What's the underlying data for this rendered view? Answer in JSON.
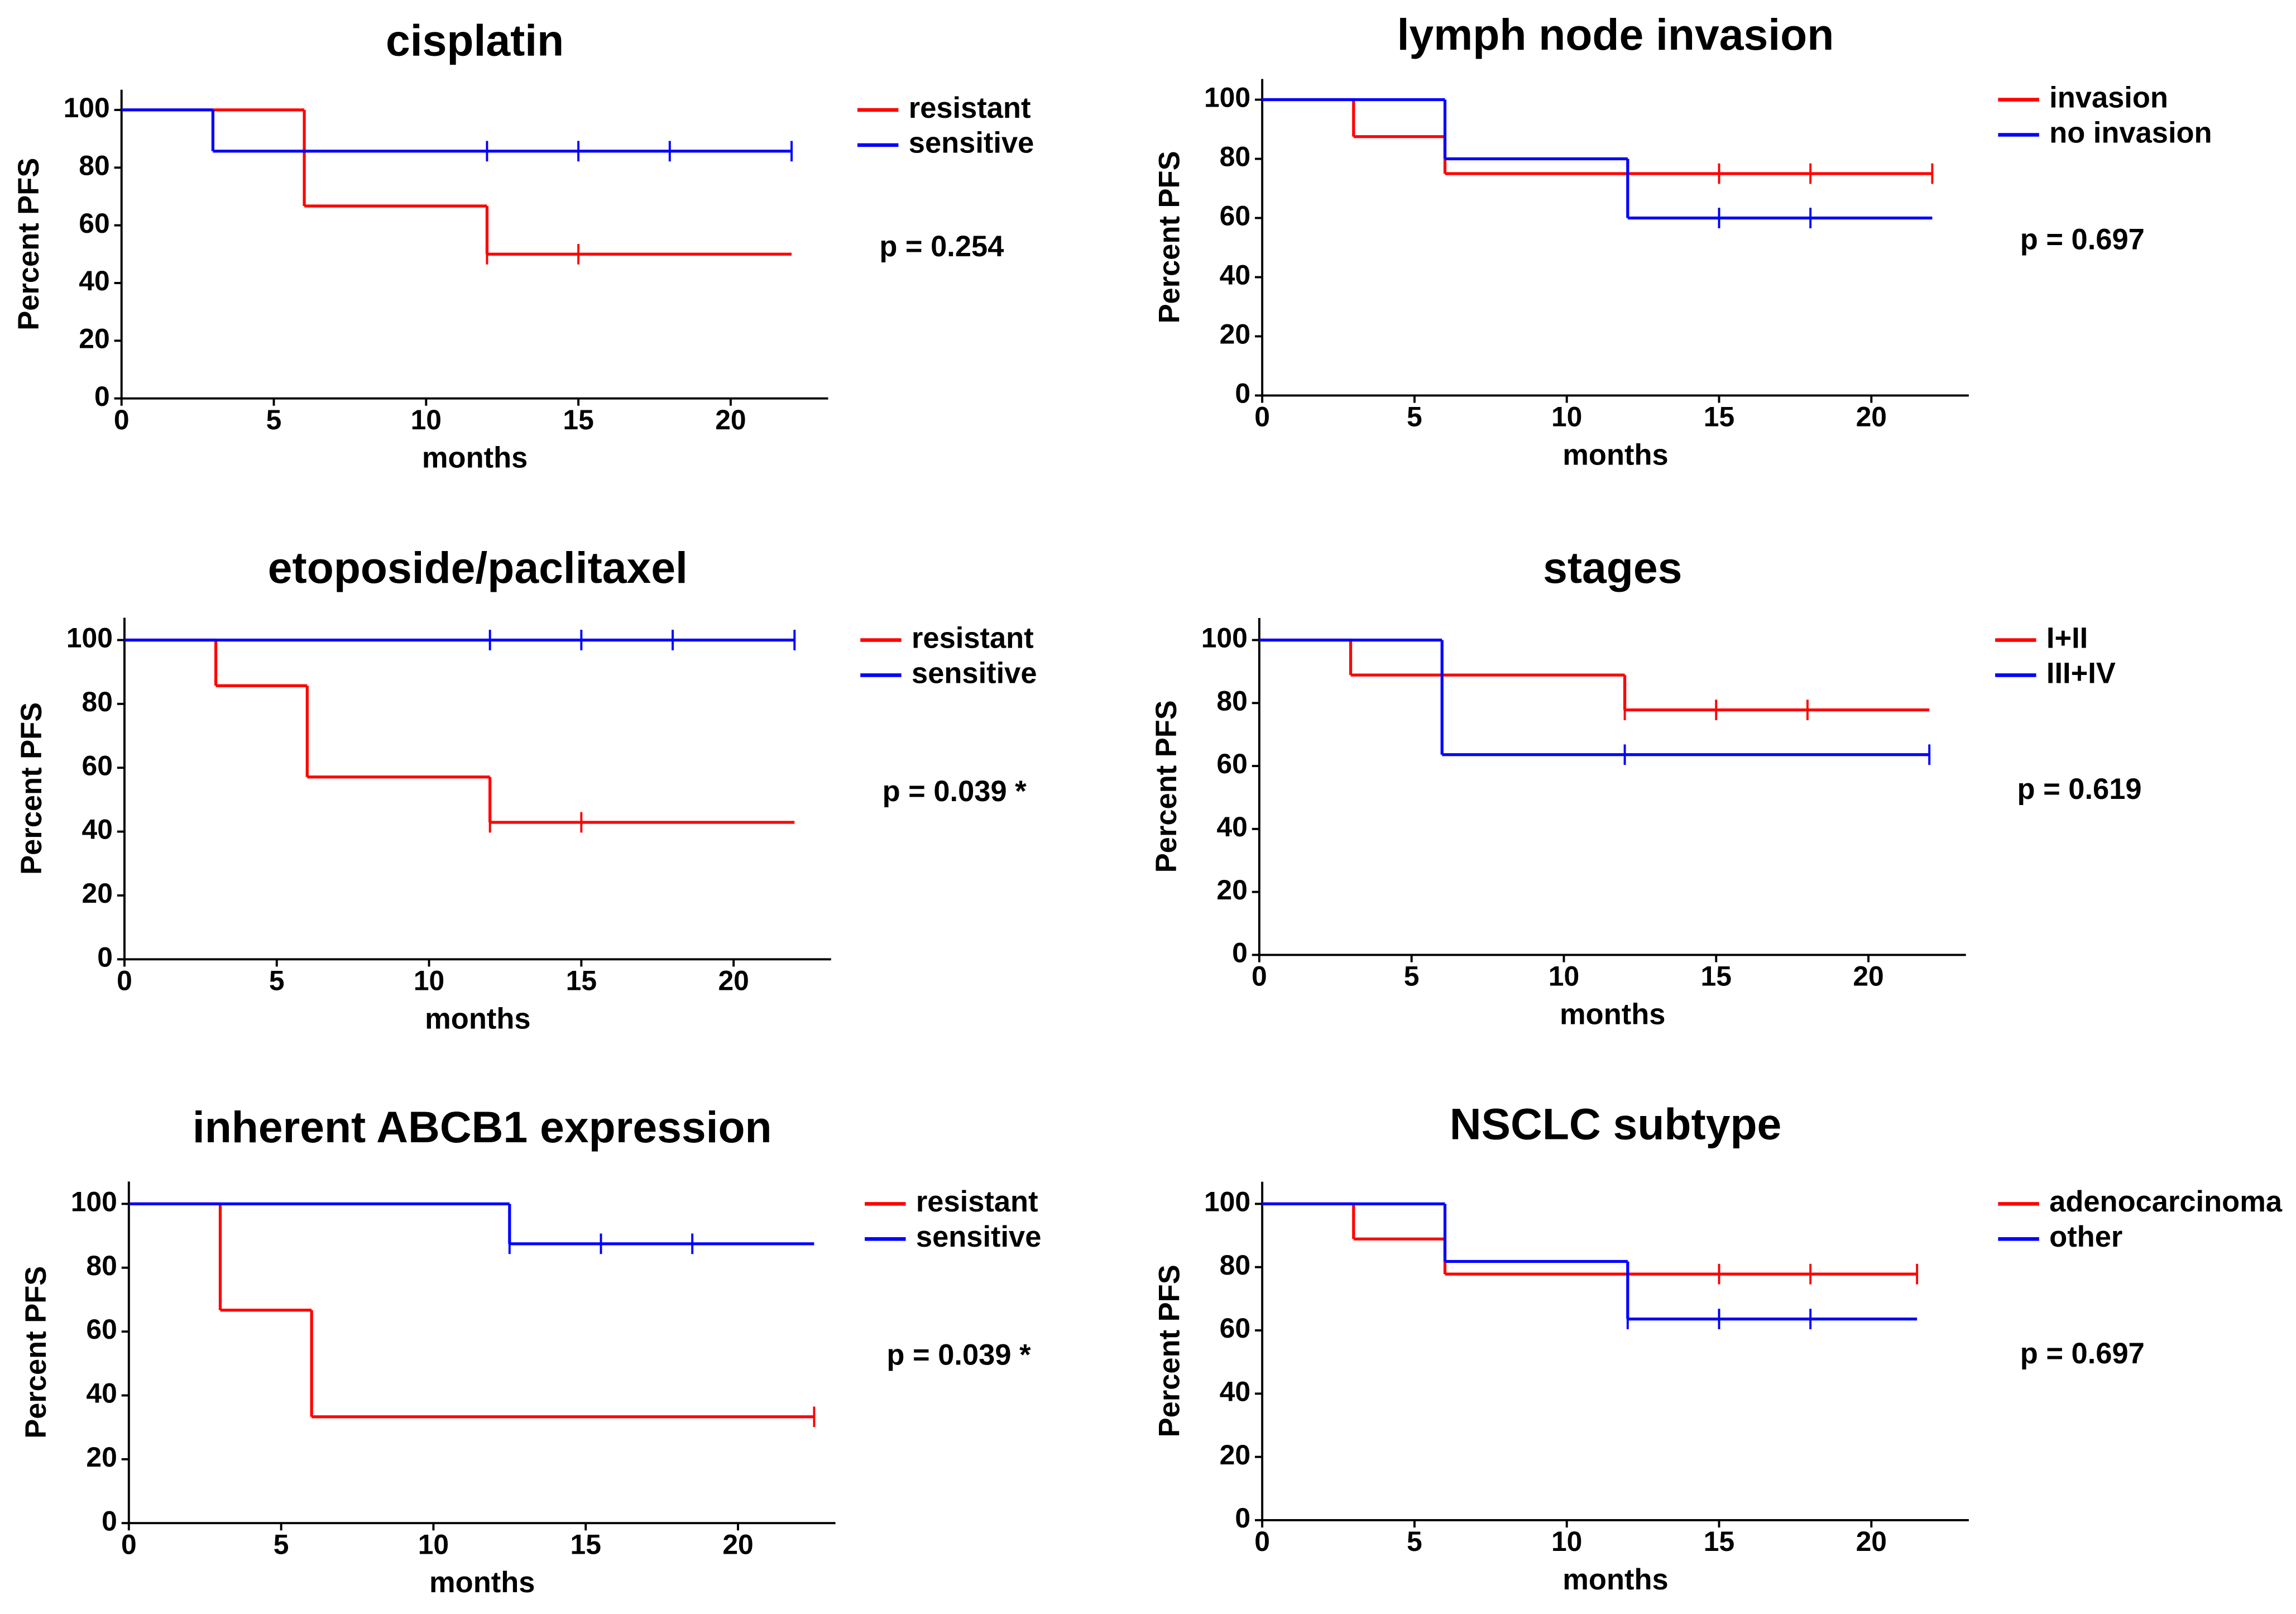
{
  "chart_data": [
    {
      "type": "step",
      "title": "cisplatin",
      "xlabel": "months",
      "ylabel": "Percent PFS",
      "annotation": "p = 0.254",
      "xlim": [
        0,
        23.2
      ],
      "ylim": [
        0,
        107
      ],
      "xticks": [
        0,
        5,
        10,
        15,
        20
      ],
      "yticks": [
        0,
        20,
        40,
        60,
        80,
        100
      ],
      "series": [
        {
          "name": "resistant",
          "color": "#ff0000",
          "x": [
            0,
            6,
            12,
            22
          ],
          "values": [
            100,
            66.7,
            50,
            50
          ],
          "censor_x": [
            12,
            15
          ],
          "censor_values": [
            50,
            50
          ]
        },
        {
          "name": "sensitive",
          "color": "#0000ff",
          "x": [
            0,
            3,
            22
          ],
          "values": [
            100,
            85.7,
            85.7
          ],
          "censor_x": [
            12,
            15,
            18,
            22
          ],
          "censor_values": [
            85.7,
            85.7,
            85.7,
            85.7
          ]
        }
      ]
    },
    {
      "type": "step",
      "title": "lymph node invasion",
      "xlabel": "months",
      "ylabel": "Percent PFS",
      "annotation": "p = 0.697",
      "xlim": [
        0,
        23.2
      ],
      "ylim": [
        0,
        107
      ],
      "xticks": [
        0,
        5,
        10,
        15,
        20
      ],
      "yticks": [
        0,
        20,
        40,
        60,
        80,
        100
      ],
      "series": [
        {
          "name": "invasion",
          "color": "#ff0000",
          "x": [
            0,
            3,
            6,
            22
          ],
          "values": [
            100,
            87.5,
            75,
            75
          ],
          "censor_x": [
            15,
            18,
            22
          ],
          "censor_values": [
            75,
            75,
            75
          ]
        },
        {
          "name": "no invasion",
          "color": "#0000ff",
          "x": [
            0,
            6,
            12,
            22
          ],
          "values": [
            100,
            80,
            60,
            60
          ],
          "censor_x": [
            15,
            18
          ],
          "censor_values": [
            60,
            60
          ]
        }
      ]
    },
    {
      "type": "step",
      "title": "etoposide/paclitaxel",
      "xlabel": "months",
      "ylabel": "Percent PFS",
      "annotation": "p = 0.039 *",
      "xlim": [
        0,
        23.2
      ],
      "ylim": [
        0,
        107
      ],
      "xticks": [
        0,
        5,
        10,
        15,
        20
      ],
      "yticks": [
        0,
        20,
        40,
        60,
        80,
        100
      ],
      "series": [
        {
          "name": "resistant",
          "color": "#ff0000",
          "x": [
            0,
            3,
            6,
            12,
            22
          ],
          "values": [
            100,
            85.7,
            57.1,
            42.9,
            42.9
          ],
          "censor_x": [
            12,
            15
          ],
          "censor_values": [
            42.9,
            42.9
          ]
        },
        {
          "name": "sensitive",
          "color": "#0000ff",
          "x": [
            0,
            22
          ],
          "values": [
            100,
            100
          ],
          "censor_x": [
            12,
            15,
            18,
            22
          ],
          "censor_values": [
            100,
            100,
            100,
            100
          ]
        }
      ]
    },
    {
      "type": "step",
      "title": "stages",
      "xlabel": "months",
      "ylabel": "Percent PFS",
      "annotation": "p = 0.619",
      "xlim": [
        0,
        23.2
      ],
      "ylim": [
        0,
        107
      ],
      "xticks": [
        0,
        5,
        10,
        15,
        20
      ],
      "yticks": [
        0,
        20,
        40,
        60,
        80,
        100
      ],
      "series": [
        {
          "name": "I+II",
          "color": "#ff0000",
          "x": [
            0,
            3,
            12,
            22
          ],
          "values": [
            100,
            88.9,
            77.8,
            77.8
          ],
          "censor_x": [
            12,
            15,
            18
          ],
          "censor_values": [
            77.8,
            77.8,
            77.8
          ]
        },
        {
          "name": "III+IV",
          "color": "#0000ff",
          "x": [
            0,
            6,
            22
          ],
          "values": [
            100,
            63.6,
            63.6
          ],
          "censor_x": [
            12,
            22
          ],
          "censor_values": [
            63.6,
            63.6
          ]
        }
      ]
    },
    {
      "type": "step",
      "title": "inherent ABCB1 expression",
      "xlabel": "months",
      "ylabel": "Percent PFS",
      "annotation": "p = 0.039 *",
      "xlim": [
        0,
        23.2
      ],
      "ylim": [
        0,
        107
      ],
      "xticks": [
        0,
        5,
        10,
        15,
        20
      ],
      "yticks": [
        0,
        20,
        40,
        60,
        80,
        100
      ],
      "series": [
        {
          "name": "resistant",
          "color": "#ff0000",
          "x": [
            0,
            3,
            6,
            22.5
          ],
          "values": [
            100,
            66.7,
            33.3,
            33.3
          ],
          "censor_x": [
            22.5
          ],
          "censor_values": [
            33.3
          ]
        },
        {
          "name": "sensitive",
          "color": "#0000ff",
          "x": [
            0,
            12.5,
            22.5
          ],
          "values": [
            100,
            87.5,
            87.5
          ],
          "censor_x": [
            12.5,
            15.5,
            18.5
          ],
          "censor_values": [
            87.5,
            87.5,
            87.5
          ]
        }
      ]
    },
    {
      "type": "step",
      "title": "NSCLC subtype",
      "xlabel": "months",
      "ylabel": "Percent PFS",
      "annotation": "p = 0.697",
      "xlim": [
        0,
        23.2
      ],
      "ylim": [
        0,
        107
      ],
      "xticks": [
        0,
        5,
        10,
        15,
        20
      ],
      "yticks": [
        0,
        20,
        40,
        60,
        80,
        100
      ],
      "series": [
        {
          "name": "adenocarcinoma",
          "color": "#ff0000",
          "x": [
            0,
            3,
            6,
            21.5
          ],
          "values": [
            100,
            88.9,
            77.8,
            77.8
          ],
          "censor_x": [
            15,
            18,
            21.5
          ],
          "censor_values": [
            77.8,
            77.8,
            77.8
          ]
        },
        {
          "name": "other",
          "color": "#0000ff",
          "x": [
            0,
            6,
            12,
            21.5
          ],
          "values": [
            100,
            81.8,
            63.6,
            63.6
          ],
          "censor_x": [
            12,
            15,
            18
          ],
          "censor_values": [
            63.6,
            63.6,
            63.6
          ]
        }
      ]
    }
  ]
}
